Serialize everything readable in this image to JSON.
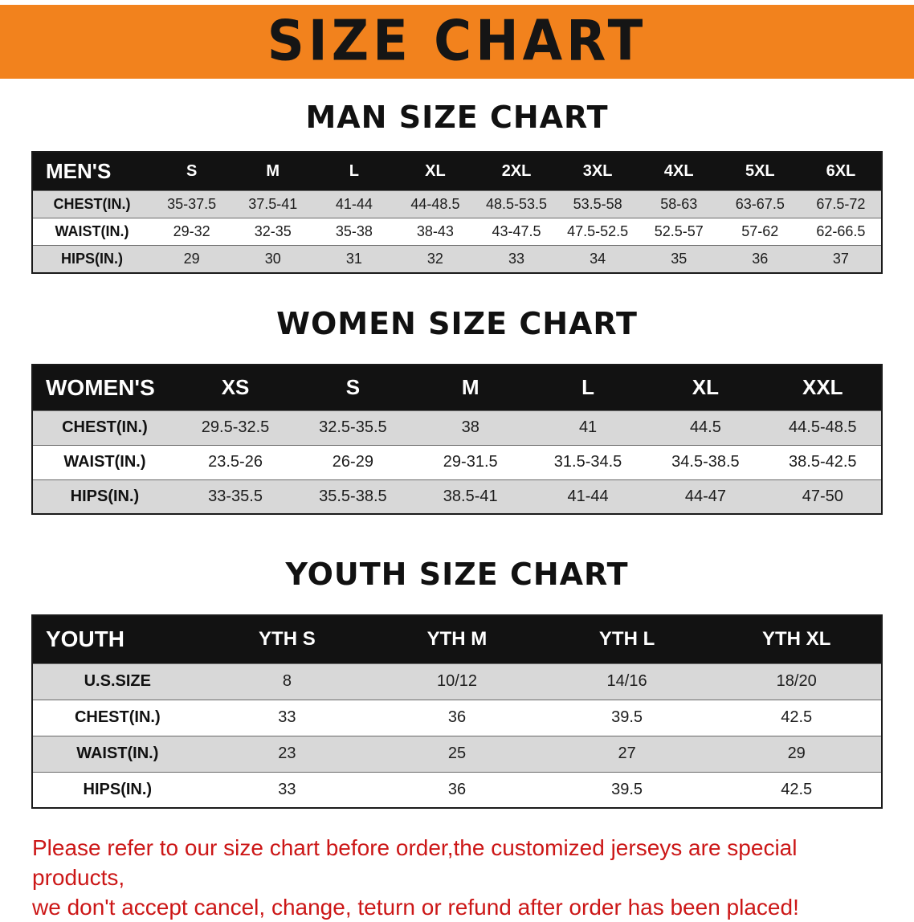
{
  "banner": {
    "title": "SIZE CHART"
  },
  "sections": [
    {
      "heading": "MAN SIZE CHART",
      "table": {
        "header": [
          "MEN'S",
          "S",
          "M",
          "L",
          "XL",
          "2XL",
          "3XL",
          "4XL",
          "5XL",
          "6XL"
        ],
        "rows": [
          [
            "CHEST(IN.)",
            "35-37.5",
            "37.5-41",
            "41-44",
            "44-48.5",
            "48.5-53.5",
            "53.5-58",
            "58-63",
            "63-67.5",
            "67.5-72"
          ],
          [
            "WAIST(IN.)",
            "29-32",
            "32-35",
            "35-38",
            "38-43",
            "43-47.5",
            "47.5-52.5",
            "52.5-57",
            "57-62",
            "62-66.5"
          ],
          [
            "HIPS(IN.)",
            "29",
            "30",
            "31",
            "32",
            "33",
            "34",
            "35",
            "36",
            "37"
          ]
        ]
      }
    },
    {
      "heading": "WOMEN SIZE CHART",
      "table": {
        "header": [
          "WOMEN'S",
          "XS",
          "S",
          "M",
          "L",
          "XL",
          "XXL"
        ],
        "rows": [
          [
            "CHEST(IN.)",
            "29.5-32.5",
            "32.5-35.5",
            "38",
            "41",
            "44.5",
            "44.5-48.5"
          ],
          [
            "WAIST(IN.)",
            "23.5-26",
            "26-29",
            "29-31.5",
            "31.5-34.5",
            "34.5-38.5",
            "38.5-42.5"
          ],
          [
            "HIPS(IN.)",
            "33-35.5",
            "35.5-38.5",
            "38.5-41",
            "41-44",
            "44-47",
            "47-50"
          ]
        ]
      }
    },
    {
      "heading": "YOUTH SIZE CHART",
      "table": {
        "header": [
          "YOUTH",
          "YTH S",
          "YTH M",
          "YTH L",
          "YTH XL"
        ],
        "rows": [
          [
            "U.S.SIZE",
            "8",
            "10/12",
            "14/16",
            "18/20"
          ],
          [
            "CHEST(IN.)",
            "33",
            "36",
            "39.5",
            "42.5"
          ],
          [
            "WAIST(IN.)",
            "23",
            "25",
            "27",
            "29"
          ],
          [
            "HIPS(IN.)",
            "33",
            "36",
            "39.5",
            "42.5"
          ]
        ]
      }
    }
  ],
  "footer": {
    "line1": "Please refer to our size chart before order,the customized jerseys are special products,",
    "line2": "we don't accept cancel, change, teturn or refund after order has been placed!"
  },
  "colors": {
    "banner_bg": "#f2821d",
    "table_header_bg": "#121212",
    "row_alt": "#d8d8d8",
    "footer_text": "#cc1717"
  }
}
